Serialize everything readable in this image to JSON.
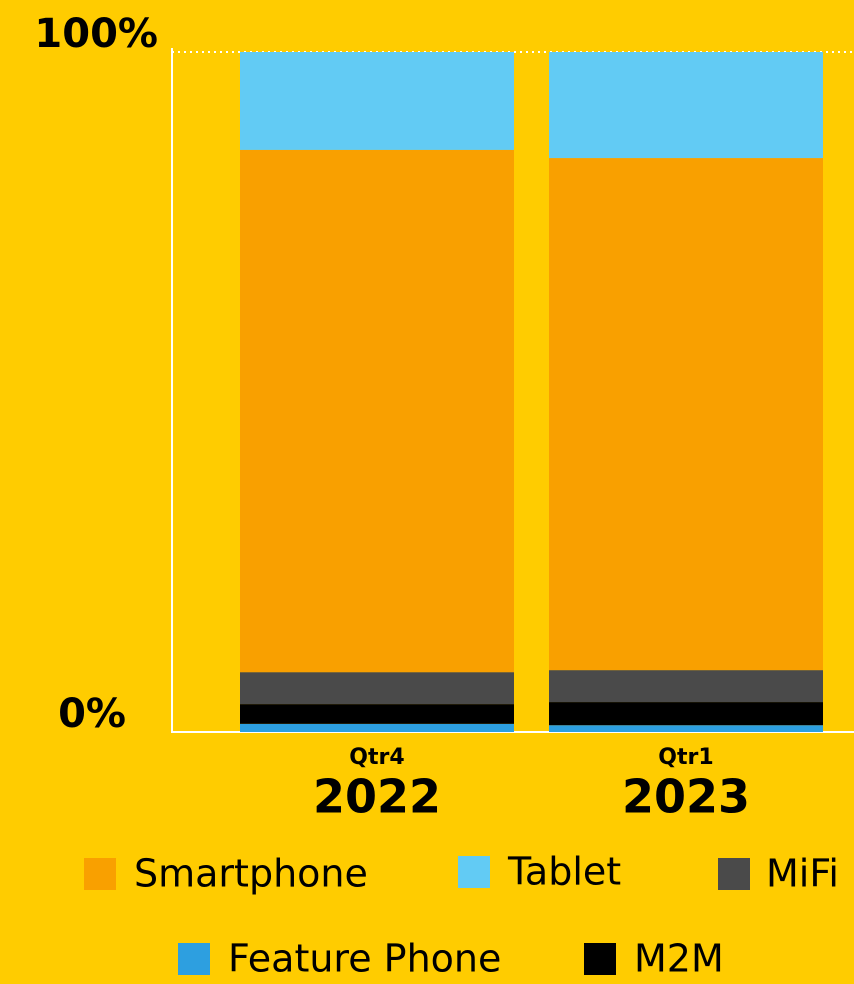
{
  "chart_data": {
    "type": "stacked_bar",
    "categories": [
      {
        "quarter": "Qtr4",
        "year": "2022"
      },
      {
        "quarter": "Qtr1",
        "year": "2023"
      }
    ],
    "series": [
      {
        "name": "Feature Phone",
        "color": "#2d9fe0",
        "values": [
          1.2,
          1.0
        ]
      },
      {
        "name": "M2M",
        "color": "#000000",
        "values": [
          2.9,
          3.4
        ]
      },
      {
        "name": "MiFi",
        "color": "#4a4a4a",
        "values": [
          4.7,
          4.7
        ]
      },
      {
        "name": "Smartphone",
        "color": "#f9a000",
        "values": [
          76.8,
          75.3
        ]
      },
      {
        "name": "Tablet",
        "color": "#62cbf4",
        "values": [
          14.4,
          15.6
        ]
      }
    ],
    "ylim": [
      0,
      100
    ],
    "yticks": [
      {
        "value": 0,
        "label": "0%"
      },
      {
        "value": 100,
        "label": "100%"
      }
    ],
    "grid": true
  }
}
